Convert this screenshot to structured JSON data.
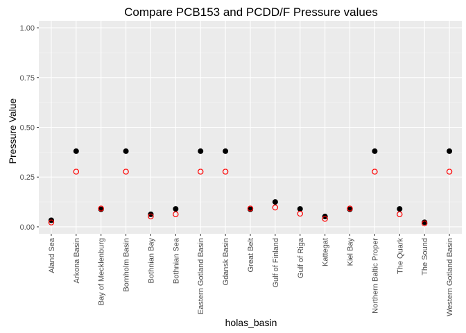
{
  "chart_data": {
    "type": "scatter",
    "title": "Compare PCB153 and PCDD/F Pressure values",
    "xlabel": "holas_basin",
    "ylabel": "Pressure Value",
    "ylim": [
      -0.035,
      1.035
    ],
    "yticks": [
      0.0,
      0.25,
      0.5,
      0.75,
      1.0
    ],
    "ytick_labels": [
      "0.00",
      "0.25",
      "0.50",
      "0.75",
      "1.00"
    ],
    "panel_background": "#ebebeb",
    "categories": [
      "Aland Sea",
      "Arkona Basin",
      "Bay of Mecklenburg",
      "Bornholm Basin",
      "Bothnian Bay",
      "Bothnian Sea",
      "Eastern Gotland Basin",
      "Gdansk Basin",
      "Great Belt",
      "Gulf of Finland",
      "Gulf of Riga",
      "Kattegat",
      "Kiel Bay",
      "Northern Baltic Proper",
      "The Quark",
      "The Sound",
      "Western Gotland Basin"
    ],
    "series": [
      {
        "name": "PCB153",
        "marker": "filled-circle",
        "color": "#000000",
        "values": [
          0.033,
          0.38,
          0.088,
          0.38,
          0.063,
          0.09,
          0.38,
          0.38,
          0.088,
          0.125,
          0.09,
          0.052,
          0.088,
          0.38,
          0.09,
          0.023,
          0.38
        ]
      },
      {
        "name": "PCDD/F",
        "marker": "open-circle",
        "color": "#ff0000",
        "values": [
          0.022,
          0.277,
          0.092,
          0.277,
          0.052,
          0.063,
          0.277,
          0.277,
          0.092,
          0.097,
          0.066,
          0.04,
          0.092,
          0.277,
          0.063,
          0.017,
          0.277
        ]
      }
    ]
  }
}
